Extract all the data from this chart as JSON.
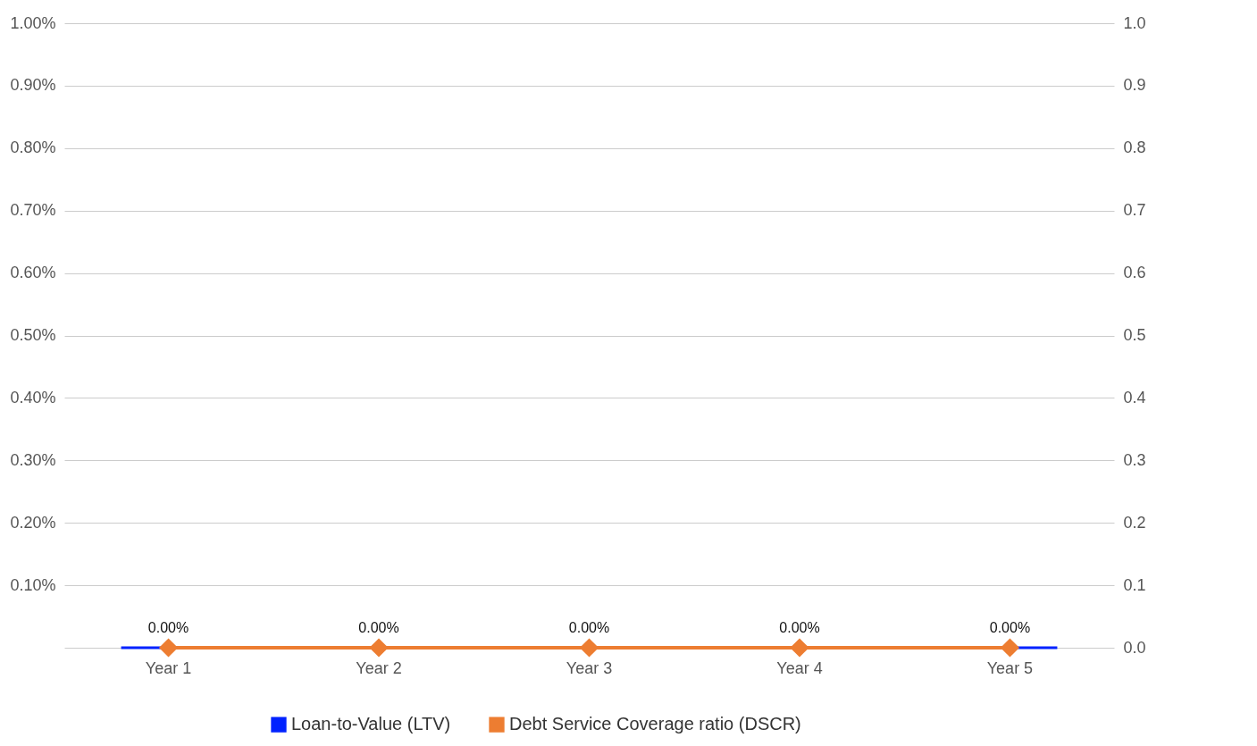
{
  "chart_data": {
    "type": "bar",
    "categories": [
      "Year 1",
      "Year 2",
      "Year 3",
      "Year 4",
      "Year 5"
    ],
    "series": [
      {
        "name": "Loan-to-Value (LTV)",
        "color": "#0022ff",
        "values": [
          0,
          0,
          0,
          0,
          0
        ],
        "value_labels": [
          "0.00%",
          "0.00%",
          "0.00%",
          "0.00%",
          "0.00%"
        ]
      },
      {
        "name": "Debt Service Coverage ratio (DSCR)",
        "type": "line",
        "axis": "y2",
        "color": "#ed7d31",
        "values": [
          0,
          0,
          0,
          0,
          0
        ]
      }
    ],
    "ylim": [
      0,
      1
    ],
    "yticks": [
      {
        "value": 0,
        "label": null
      },
      {
        "value": 0.1,
        "label": "0.10%"
      },
      {
        "value": 0.2,
        "label": "0.20%"
      },
      {
        "value": 0.3,
        "label": "0.30%"
      },
      {
        "value": 0.4,
        "label": "0.40%"
      },
      {
        "value": 0.5,
        "label": "0.50%"
      },
      {
        "value": 0.6,
        "label": "0.60%"
      },
      {
        "value": 0.7,
        "label": "0.70%"
      },
      {
        "value": 0.8,
        "label": "0.80%"
      },
      {
        "value": 0.9,
        "label": "0.90%"
      },
      {
        "value": 1,
        "label": "1.00%"
      }
    ],
    "y2lim": [
      0,
      1
    ],
    "y2ticks": [
      {
        "value": 0,
        "label": "0.0"
      },
      {
        "value": 0.1,
        "label": "0.1"
      },
      {
        "value": 0.2,
        "label": "0.2"
      },
      {
        "value": 0.3,
        "label": "0.3"
      },
      {
        "value": 0.4,
        "label": "0.4"
      },
      {
        "value": 0.5,
        "label": "0.5"
      },
      {
        "value": 0.6,
        "label": "0.6"
      },
      {
        "value": 0.7,
        "label": "0.7"
      },
      {
        "value": 0.8,
        "label": "0.8"
      },
      {
        "value": 0.9,
        "label": "0.9"
      },
      {
        "value": 1,
        "label": "1.0"
      }
    ],
    "grid": "y",
    "legend": "bottom",
    "marker": "diamond",
    "line_style": "solid"
  }
}
